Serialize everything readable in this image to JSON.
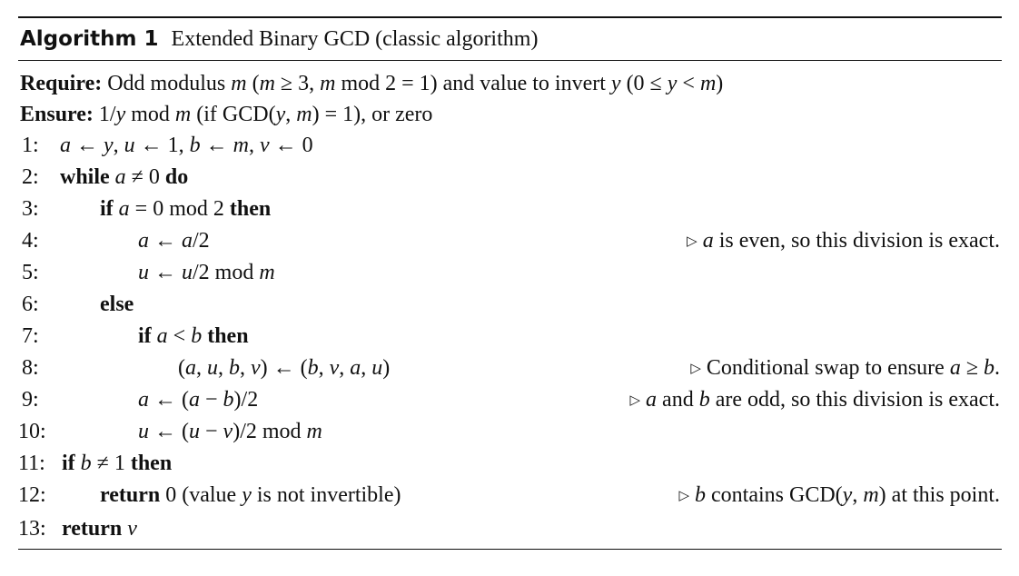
{
  "algorithm": {
    "number_label": "Algorithm 1",
    "title": "Extended Binary GCD (classic algorithm)",
    "require_label": "Require:",
    "require_text": "Odd modulus m (m ≥ 3, m mod 2 = 1) and value to invert y (0 ≤ y < m)",
    "ensure_label": "Ensure:",
    "ensure_text": "1/y mod m (if GCD(y, m) = 1), or zero",
    "lines": [
      {
        "num": "1:",
        "code": "a ← y, u ← 1, b ← m, v ← 0",
        "comment": ""
      },
      {
        "num": "2:",
        "code": "while a ≠ 0 do",
        "comment": ""
      },
      {
        "num": "3:",
        "code": "if a = 0 mod 2 then",
        "comment": ""
      },
      {
        "num": "4:",
        "code": "a ← a/2",
        "comment": "a is even, so this division is exact."
      },
      {
        "num": "5:",
        "code": "u ← u/2 mod m",
        "comment": ""
      },
      {
        "num": "6:",
        "code": "else",
        "comment": ""
      },
      {
        "num": "7:",
        "code": "if a < b then",
        "comment": ""
      },
      {
        "num": "8:",
        "code": "(a, u, b, v) ← (b, v, a, u)",
        "comment": "Conditional swap to ensure a ≥ b."
      },
      {
        "num": "9:",
        "code": "a ← (a − b)/2",
        "comment": "a and b are odd, so this division is exact."
      },
      {
        "num": "10:",
        "code": "u ← (u − v)/2 mod m",
        "comment": ""
      },
      {
        "num": "11:",
        "code": "if b ≠ 1 then",
        "comment": ""
      },
      {
        "num": "12:",
        "code": "return 0 (value y is not invertible)",
        "comment": "b contains GCD(y, m) at this point."
      },
      {
        "num": "13:",
        "code": "return v",
        "comment": ""
      }
    ],
    "comment_glyph": "▷"
  }
}
